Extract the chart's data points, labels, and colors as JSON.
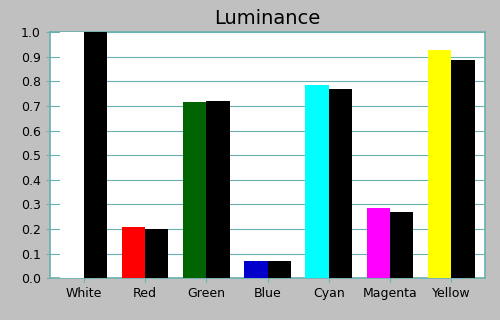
{
  "title": "Luminance",
  "categories": [
    "White",
    "Red",
    "Green",
    "Blue",
    "Cyan",
    "Magenta",
    "Yellow"
  ],
  "measured_values": [
    1.0,
    0.21,
    0.715,
    0.07,
    0.785,
    0.285,
    0.925
  ],
  "reference_values": [
    1.0,
    0.2,
    0.72,
    0.07,
    0.77,
    0.27,
    0.885
  ],
  "measured_colors": [
    "#ffffff",
    "#ff0000",
    "#006400",
    "#0000cc",
    "#00ffff",
    "#ff00ff",
    "#ffff00"
  ],
  "reference_color": "#000000",
  "background_color": "#c0c0c0",
  "plot_background": "#ffffff",
  "ylim": [
    0.0,
    1.0
  ],
  "yticks": [
    0.0,
    0.1,
    0.2,
    0.3,
    0.4,
    0.5,
    0.6,
    0.7,
    0.8,
    0.9,
    1.0
  ],
  "title_fontsize": 14,
  "tick_fontsize": 9,
  "bar_width": 0.38,
  "grid_color": "#6ab0b0",
  "grid_linewidth": 0.8,
  "spine_color": "#6ab0b0"
}
